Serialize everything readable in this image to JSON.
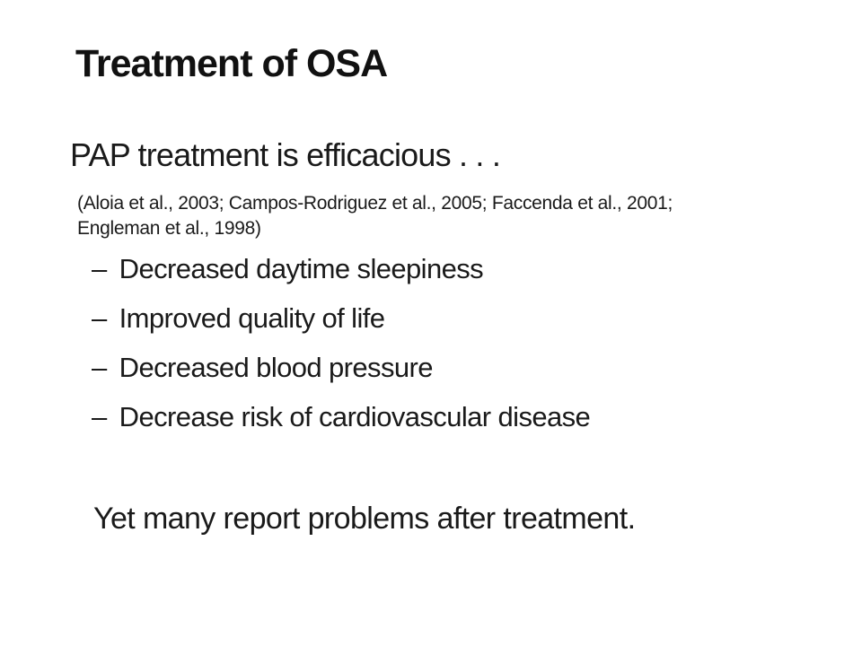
{
  "slide": {
    "background_color": "#ffffff",
    "text_color": "#1a1a1a",
    "title": "Treatment of OSA",
    "lead": "PAP treatment is efficacious . . .",
    "citation_line1": "(Aloia et al., 2003; Campos-Rodriguez et al., 2005; Faccenda et al., 2001;",
    "citation_line2": "Engleman et al., 1998)",
    "bullet_char": "–",
    "bullets": [
      "Decreased daytime sleepiness",
      "Improved quality of life",
      "Decreased blood pressure",
      "Decrease risk of cardiovascular disease"
    ],
    "closing": "Yet many report problems after treatment."
  }
}
